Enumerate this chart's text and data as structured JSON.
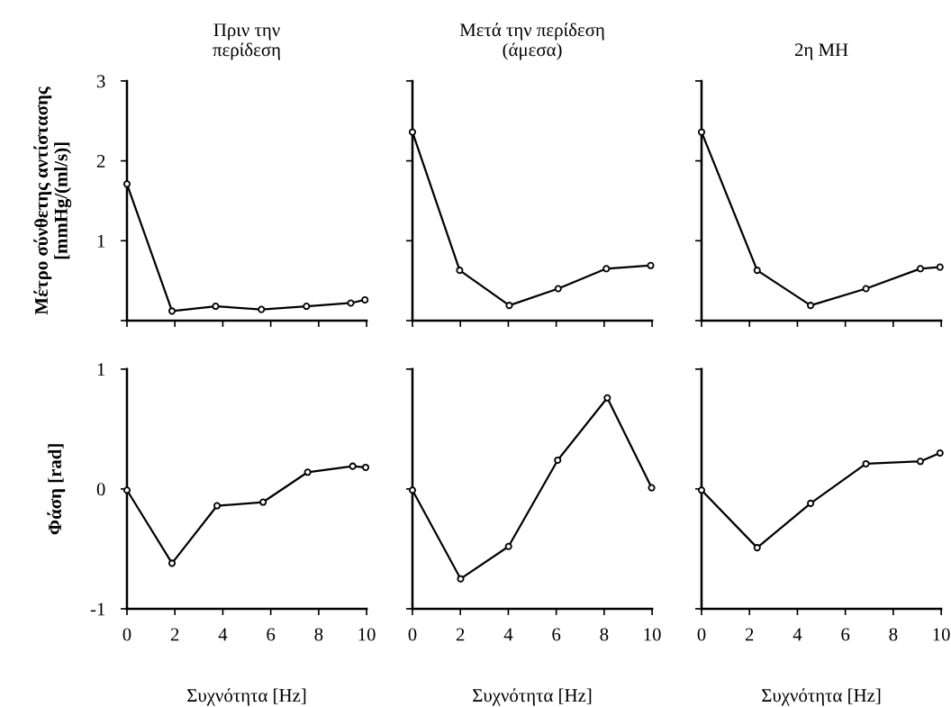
{
  "chart_data": [
    {
      "type": "line",
      "title": "Πριν την\nπερίδεση",
      "ylabel": "Μέτρο σύνθετης αντίστασης\n[mmHg/(ml/s)]",
      "xlim": [
        0,
        10
      ],
      "ylim": [
        0,
        3
      ],
      "xticks": [
        0,
        2,
        4,
        6,
        8,
        10
      ],
      "yticks": [
        {
          "value": 0,
          "label": null
        },
        1,
        2,
        3
      ],
      "tick_labels": "y",
      "marker": "circle",
      "series": [
        {
          "color": "#000000",
          "x": [
            0,
            1.88,
            3.7,
            5.61,
            7.49,
            9.34,
            9.93
          ],
          "values": [
            1.71,
            0.12,
            0.18,
            0.14,
            0.18,
            0.22,
            0.26
          ]
        }
      ]
    },
    {
      "type": "line",
      "title": "Μετά την περίδεση\n(άμεσα)",
      "xlim": [
        0,
        10
      ],
      "ylim": [
        0,
        3
      ],
      "xticks": [
        0,
        2,
        4,
        6,
        8,
        10
      ],
      "yticks": [
        0,
        1,
        2,
        3
      ],
      "tick_labels": false,
      "marker": "circle",
      "series": [
        {
          "color": "#000000",
          "x": [
            0,
            1.97,
            4.04,
            6.08,
            8.09,
            9.94
          ],
          "values": [
            2.36,
            0.63,
            0.19,
            0.4,
            0.65,
            0.69
          ]
        }
      ]
    },
    {
      "type": "line",
      "title": "2η ΜΗ",
      "xlim": [
        0,
        10
      ],
      "ylim": [
        0,
        3
      ],
      "xticks": [
        0,
        2,
        4,
        6,
        8,
        10
      ],
      "yticks": [
        0,
        1,
        2,
        3
      ],
      "tick_labels": false,
      "marker": "circle",
      "series": [
        {
          "color": "#000000",
          "x": [
            0,
            2.32,
            4.55,
            6.86,
            9.13,
            9.95
          ],
          "values": [
            2.36,
            0.63,
            0.19,
            0.4,
            0.65,
            0.67
          ]
        }
      ]
    },
    {
      "type": "line",
      "xlabel": "Συχνότητα [Hz]",
      "ylabel": "Φάση [rad]",
      "xlim": [
        0,
        10
      ],
      "ylim": [
        -1,
        1
      ],
      "xticks": [
        0,
        2,
        4,
        6,
        8,
        10
      ],
      "yticks": [
        -1,
        0,
        1
      ],
      "marker": "circle",
      "series": [
        {
          "color": "#000000",
          "x": [
            0,
            1.88,
            3.76,
            5.68,
            7.54,
            9.42,
            9.96
          ],
          "values": [
            -0.01,
            -0.62,
            -0.14,
            -0.11,
            0.14,
            0.19,
            0.18
          ]
        }
      ]
    },
    {
      "type": "line",
      "xlabel": "Συχνότητα [Hz]",
      "xlim": [
        0,
        10
      ],
      "ylim": [
        -1,
        1
      ],
      "xticks": [
        0,
        2,
        4,
        6,
        8,
        10
      ],
      "yticks": [
        -1,
        0,
        1
      ],
      "tick_labels": "x",
      "marker": "circle",
      "series": [
        {
          "color": "#000000",
          "x": [
            0,
            2.01,
            4.01,
            6.06,
            8.13,
            9.98
          ],
          "values": [
            -0.01,
            -0.75,
            -0.48,
            0.24,
            0.76,
            0.01
          ]
        }
      ]
    },
    {
      "type": "line",
      "xlabel": "Συχνότητα [Hz]",
      "xlim": [
        0,
        10
      ],
      "ylim": [
        -1,
        1
      ],
      "xticks": [
        0,
        2,
        4,
        6,
        8,
        10
      ],
      "yticks": [
        -1,
        0,
        1
      ],
      "tick_labels": "x",
      "marker": "circle",
      "series": [
        {
          "color": "#000000",
          "x": [
            0,
            2.32,
            4.55,
            6.86,
            9.13,
            9.95
          ],
          "values": [
            -0.01,
            -0.49,
            -0.12,
            0.21,
            0.23,
            0.3
          ]
        }
      ]
    }
  ]
}
